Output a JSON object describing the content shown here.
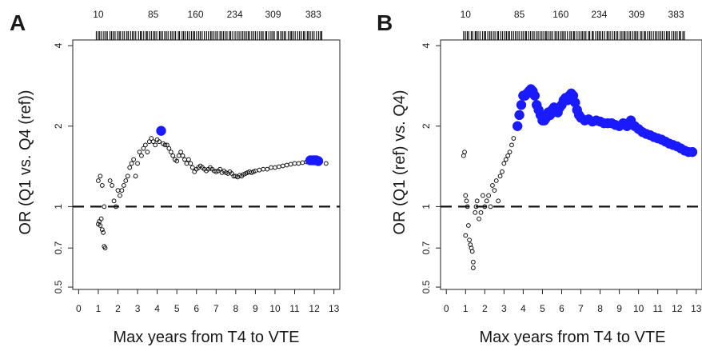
{
  "chart_data": [
    {
      "panel": "A",
      "type": "scatter",
      "xlabel": "Max years from T4 to VTE",
      "ylabel": "OR (Q1 vs. Q4 (ref))",
      "xlim": [
        -0.3,
        13.3
      ],
      "ylim": [
        0.49,
        4.2
      ],
      "y_scale": "log",
      "x_ticks": [
        0,
        1,
        2,
        3,
        4,
        5,
        6,
        7,
        8,
        9,
        10,
        11,
        12,
        13
      ],
      "y_ticks": [
        0.5,
        0.7,
        1,
        2,
        4
      ],
      "y_tick_labels": [
        "0.5",
        "0.7",
        "1",
        "2",
        "4"
      ],
      "top_axis_labels": [
        "10",
        "85",
        "160",
        "234",
        "309",
        "383"
      ],
      "top_axis_label_x": [
        1.0,
        3.8,
        5.95,
        7.95,
        9.9,
        11.95
      ],
      "reference_line": 1,
      "rug_x_range": [
        0.9,
        12.4
      ],
      "series": [
        {
          "color": "#111111",
          "marker": "open-circle",
          "size": "small",
          "x": [
            1.0,
            1.05,
            1.1,
            1.15,
            1.2,
            1.25,
            1.3,
            1.35,
            1.0,
            1.1,
            1.2,
            1.3,
            1.6,
            1.7,
            1.8,
            1.9,
            2.0,
            2.1,
            2.2,
            2.3,
            2.4,
            2.5,
            2.6,
            2.7,
            2.8,
            2.9,
            3.0,
            3.1,
            3.2,
            3.3,
            3.4,
            3.5,
            3.6,
            3.7,
            3.8,
            3.9,
            4.0,
            4.1,
            4.3,
            4.4,
            4.5,
            4.6,
            4.7,
            4.8,
            4.9,
            5.0,
            5.1,
            5.2,
            5.3,
            5.4,
            5.5,
            5.6,
            5.7,
            5.8,
            5.9,
            6.0,
            6.1,
            6.2,
            6.3,
            6.4,
            6.5,
            6.6,
            6.7,
            6.8,
            6.9,
            7.0,
            7.1,
            7.2,
            7.3,
            7.4,
            7.5,
            7.6,
            7.7,
            7.8,
            7.9,
            8.0,
            8.1,
            8.2,
            8.3,
            8.4,
            8.5,
            8.6,
            8.7,
            8.8,
            8.9,
            9.0,
            9.2,
            9.4,
            9.6,
            9.8,
            10.0,
            10.2,
            10.4,
            10.6,
            10.8,
            11.0,
            11.2,
            11.4,
            11.6,
            11.8,
            12.0,
            12.6
          ],
          "y": [
            0.86,
            0.88,
            0.85,
            0.9,
            0.82,
            0.8,
            0.71,
            0.7,
            1.25,
            1.3,
            1.2,
            1.0,
            1.25,
            1.2,
            1.05,
            1.0,
            1.15,
            1.1,
            1.15,
            1.2,
            1.25,
            1.3,
            1.4,
            1.45,
            1.5,
            1.3,
            1.45,
            1.6,
            1.55,
            1.65,
            1.7,
            1.6,
            1.75,
            1.8,
            1.75,
            1.7,
            1.78,
            1.75,
            1.72,
            1.7,
            1.7,
            1.65,
            1.6,
            1.55,
            1.5,
            1.48,
            1.55,
            1.6,
            1.55,
            1.5,
            1.45,
            1.5,
            1.45,
            1.4,
            1.35,
            1.38,
            1.4,
            1.42,
            1.4,
            1.38,
            1.36,
            1.38,
            1.4,
            1.38,
            1.36,
            1.35,
            1.36,
            1.38,
            1.34,
            1.36,
            1.34,
            1.33,
            1.35,
            1.33,
            1.3,
            1.3,
            1.29,
            1.31,
            1.3,
            1.32,
            1.33,
            1.34,
            1.35,
            1.34,
            1.35,
            1.36,
            1.37,
            1.38,
            1.38,
            1.4,
            1.4,
            1.41,
            1.42,
            1.43,
            1.44,
            1.45,
            1.45,
            1.46,
            1.47,
            1.47,
            1.48,
            1.45
          ]
        },
        {
          "color": "#1a1aff",
          "marker": "filled-circle",
          "size": "large",
          "x": [
            4.2,
            11.8,
            11.9,
            12.0,
            12.1,
            12.2
          ],
          "y": [
            1.92,
            1.49,
            1.49,
            1.49,
            1.49,
            1.48
          ]
        }
      ]
    },
    {
      "panel": "B",
      "type": "scatter",
      "xlabel": "Max years from T4 to VTE",
      "ylabel": "OR (Q1 (ref) vs. Q4)",
      "xlim": [
        -0.3,
        13.3
      ],
      "ylim": [
        0.49,
        4.2
      ],
      "y_scale": "log",
      "x_ticks": [
        0,
        1,
        2,
        3,
        4,
        5,
        6,
        7,
        8,
        9,
        10,
        11,
        12,
        13
      ],
      "y_ticks": [
        0.5,
        0.7,
        1,
        2,
        4
      ],
      "y_tick_labels": [
        "0.5",
        "0.7",
        "1",
        "2",
        "4"
      ],
      "top_axis_labels": [
        "10",
        "85",
        "160",
        "234",
        "309",
        "383"
      ],
      "top_axis_label_x": [
        1.0,
        3.8,
        5.95,
        7.95,
        9.9,
        11.95
      ],
      "reference_line": 1,
      "rug_x_range": [
        0.9,
        12.4
      ],
      "series": [
        {
          "color": "#111111",
          "marker": "open-circle",
          "size": "small",
          "x": [
            0.9,
            0.95,
            1.0,
            1.05,
            1.1,
            1.15,
            1.2,
            1.25,
            1.3,
            1.35,
            1.4,
            1.5,
            1.55,
            1.6,
            1.7,
            1.8,
            1.9,
            2.0,
            2.1,
            2.2,
            2.3,
            2.4,
            2.5,
            2.6,
            2.7,
            2.8,
            2.9,
            3.0,
            3.1,
            3.2,
            3.3,
            3.4,
            3.5,
            1.0,
            1.4
          ],
          "y": [
            1.55,
            1.6,
            1.1,
            1.05,
            1.0,
            0.85,
            0.75,
            0.72,
            0.7,
            0.68,
            0.59,
            0.95,
            1.0,
            1.05,
            0.9,
            0.95,
            1.1,
            1.0,
            1.05,
            1.1,
            1.0,
            1.2,
            1.15,
            1.25,
            1.05,
            1.3,
            1.35,
            1.45,
            1.5,
            1.55,
            1.6,
            1.7,
            1.8,
            0.78,
            0.62
          ]
        },
        {
          "color": "#1a1aff",
          "marker": "filled-circle",
          "size": "large",
          "x": [
            3.7,
            3.8,
            3.9,
            4.0,
            4.1,
            4.2,
            4.3,
            4.4,
            4.5,
            4.6,
            4.7,
            4.8,
            4.9,
            5.0,
            5.1,
            5.2,
            5.3,
            5.4,
            5.5,
            5.6,
            5.7,
            5.8,
            5.9,
            6.0,
            6.1,
            6.2,
            6.3,
            6.4,
            6.5,
            6.6,
            6.7,
            6.8,
            6.9,
            7.0,
            7.2,
            7.4,
            7.6,
            7.8,
            8.0,
            8.2,
            8.4,
            8.6,
            8.8,
            9.0,
            9.2,
            9.4,
            9.6,
            9.8,
            10.0,
            10.2,
            10.4,
            10.6,
            10.8,
            11.0,
            11.2,
            11.4,
            11.6,
            11.8,
            12.0,
            12.2,
            12.4,
            12.6,
            12.8
          ],
          "y": [
            2.0,
            2.2,
            2.4,
            2.6,
            2.6,
            2.65,
            2.7,
            2.75,
            2.7,
            2.6,
            2.4,
            2.3,
            2.2,
            2.1,
            2.1,
            2.15,
            2.25,
            2.2,
            2.3,
            2.35,
            2.3,
            2.25,
            2.35,
            2.4,
            2.5,
            2.55,
            2.5,
            2.6,
            2.65,
            2.6,
            2.45,
            2.3,
            2.2,
            2.15,
            2.1,
            2.12,
            2.08,
            2.1,
            2.08,
            2.05,
            2.05,
            2.05,
            2.02,
            2.0,
            2.05,
            2.0,
            2.1,
            2.0,
            1.95,
            1.9,
            1.87,
            1.85,
            1.82,
            1.8,
            1.78,
            1.75,
            1.72,
            1.7,
            1.68,
            1.65,
            1.62,
            1.6,
            1.6
          ]
        }
      ]
    }
  ]
}
